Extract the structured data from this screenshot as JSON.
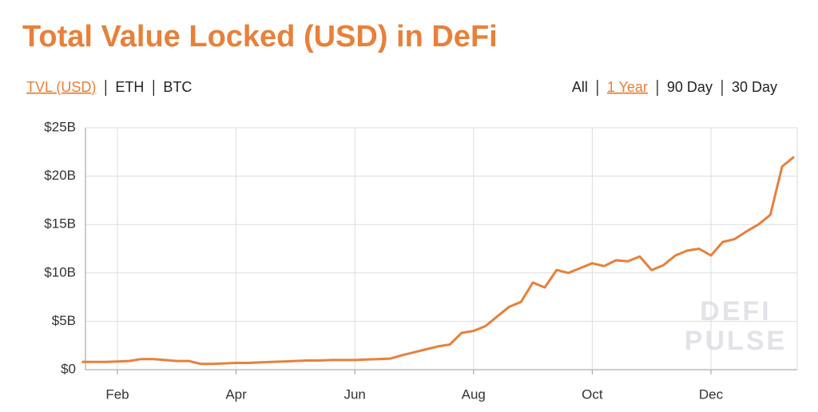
{
  "chart_data": {
    "type": "line",
    "title": "Total Value Locked (USD) in DeFi",
    "metric_tabs": [
      "TVL (USD)",
      "ETH",
      "BTC"
    ],
    "active_metric": 0,
    "range_tabs": [
      "All",
      "1 Year",
      "90 Day",
      "30 Day"
    ],
    "active_range": 1,
    "watermark": [
      "DEFI",
      "PULSE"
    ],
    "categories": [
      null,
      null,
      null,
      "Feb",
      null,
      null,
      null,
      null,
      null,
      null,
      null,
      null,
      null,
      "Apr",
      null,
      null,
      null,
      null,
      null,
      null,
      null,
      null,
      null,
      "Jun",
      null,
      null,
      null,
      null,
      null,
      null,
      null,
      null,
      null,
      "Aug",
      null,
      null,
      null,
      null,
      null,
      null,
      null,
      null,
      null,
      "Oct",
      null,
      null,
      null,
      null,
      null,
      null,
      null,
      null,
      null,
      "Dec",
      null,
      null,
      null,
      null,
      null,
      null,
      null
    ],
    "series": [
      {
        "name": "TVL (USD)",
        "color": "#e8803a",
        "values": [
          0.8,
          0.8,
          0.8,
          0.85,
          0.9,
          1.1,
          1.1,
          1.0,
          0.9,
          0.9,
          0.6,
          0.6,
          0.65,
          0.7,
          0.7,
          0.75,
          0.8,
          0.85,
          0.9,
          0.95,
          0.95,
          1.0,
          1.0,
          1.0,
          1.05,
          1.1,
          1.15,
          1.5,
          1.8,
          2.1,
          2.4,
          2.6,
          3.8,
          4.0,
          4.5,
          5.5,
          6.5,
          7.0,
          9.0,
          8.5,
          10.3,
          10.0,
          10.5,
          11.0,
          10.7,
          11.3,
          11.2,
          11.7,
          10.3,
          10.8,
          11.8,
          12.3,
          12.5,
          11.8,
          13.2,
          13.5,
          14.3,
          15.0,
          16.0,
          21.0,
          22.0
        ]
      }
    ],
    "ylim": [
      0,
      25
    ],
    "yticks": [
      {
        "value": 0,
        "label": "$0"
      },
      {
        "value": 5,
        "label": "$5B"
      },
      {
        "value": 10,
        "label": "$10B"
      },
      {
        "value": 15,
        "label": "$15B"
      },
      {
        "value": 20,
        "label": "$20B"
      },
      {
        "value": 25,
        "label": "$25B"
      }
    ],
    "grid": true
  }
}
